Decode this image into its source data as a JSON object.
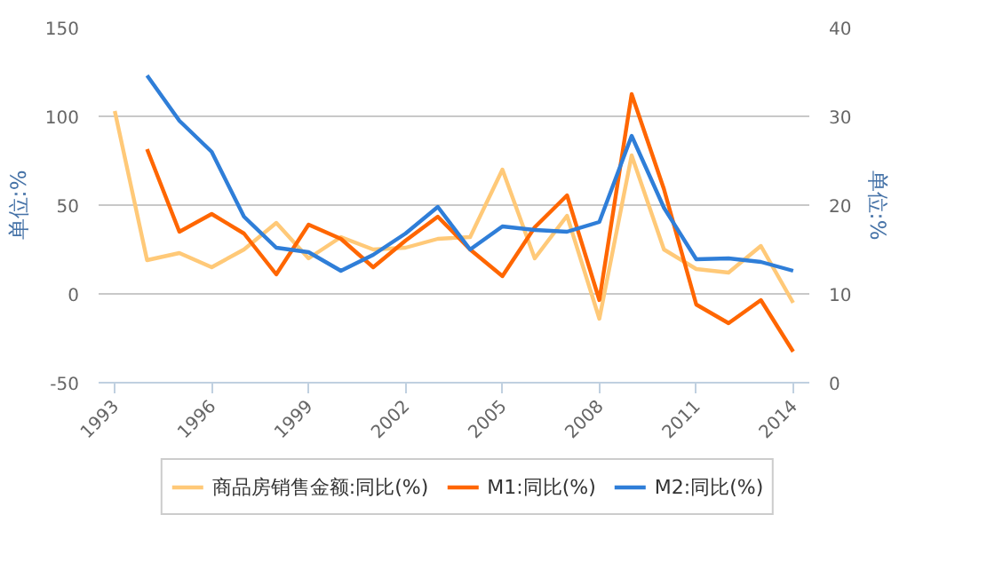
{
  "chart_data": {
    "type": "line",
    "x": [
      1993,
      1994,
      1995,
      1996,
      1997,
      1998,
      1999,
      2000,
      2001,
      2002,
      2003,
      2004,
      2005,
      2006,
      2007,
      2008,
      2009,
      2010,
      2011,
      2012,
      2013,
      2014
    ],
    "ylabel": "单位:%",
    "y2label": "单位:%",
    "xlim": [
      1992.5,
      2014.5
    ],
    "xticks": [
      1993,
      1996,
      1999,
      2002,
      2005,
      2008,
      2011,
      2014
    ],
    "ylim": [
      -50,
      150
    ],
    "yticks": [
      -50,
      0,
      50,
      100,
      150
    ],
    "y2lim": [
      0,
      40
    ],
    "y2ticks": [
      0,
      10,
      20,
      30,
      40
    ],
    "grid": "y",
    "legend": "bottom",
    "marker": "none",
    "line_style": "solid",
    "series": [
      {
        "name": "商品房销售金额:同比(%)",
        "color": "#ffc978",
        "values": [
          103,
          19,
          23,
          15,
          25,
          40,
          20,
          32,
          25,
          26,
          31,
          32,
          70,
          20,
          44,
          -14,
          78,
          25,
          14,
          12,
          27,
          -5
        ]
      },
      {
        "name": "M1:同比(%)",
        "color": "#ff6600",
        "axis": "y2",
        "values": [
          null,
          26.3,
          17.0,
          19.0,
          16.8,
          12.2,
          17.8,
          16.2,
          13.0,
          16.0,
          18.7,
          15.0,
          12.0,
          17.5,
          21.1,
          9.3,
          32.5,
          21.8,
          8.8,
          6.7,
          9.3,
          3.5
        ]
      },
      {
        "name": "M2:同比(%)",
        "color": "#2f7ed8",
        "axis": "y2",
        "values": [
          null,
          34.6,
          29.5,
          26.0,
          18.7,
          15.2,
          14.7,
          12.6,
          14.4,
          16.8,
          19.8,
          15.0,
          17.6,
          17.2,
          17.0,
          18.1,
          27.8,
          19.7,
          13.9,
          14.0,
          13.6,
          12.6
        ]
      }
    ]
  }
}
